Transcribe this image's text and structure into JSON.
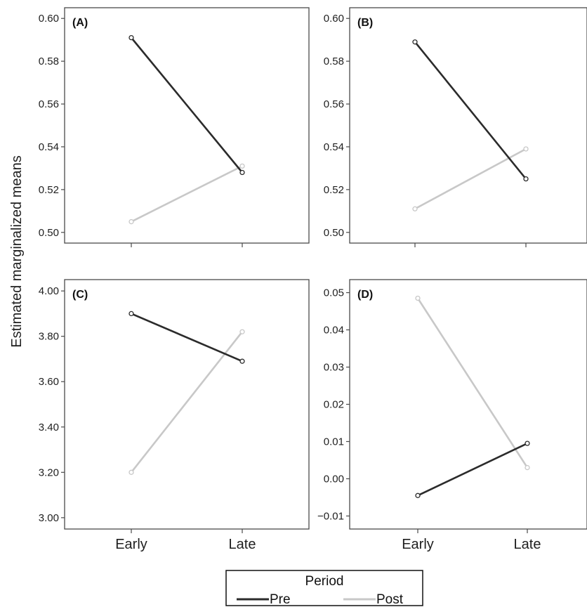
{
  "chart_data": {
    "type": "line",
    "ylabel": "Estimated marginalized means",
    "categories": [
      "Early",
      "Late"
    ],
    "legend": {
      "title": "Period",
      "placement": "bottom-center",
      "entries": [
        {
          "name": "Pre",
          "color": "#2b2b2b"
        },
        {
          "name": "Post",
          "color": "#c8c8c8"
        }
      ]
    },
    "panels": [
      {
        "label": "(A)",
        "ylim": [
          0.495,
          0.605
        ],
        "yticks": [
          0.5,
          0.52,
          0.54,
          0.56,
          0.58,
          0.6
        ],
        "ytick_labels": [
          "0.50",
          "0.52",
          "0.54",
          "0.56",
          "0.58",
          "0.60"
        ],
        "series": [
          {
            "name": "Pre",
            "values": [
              0.591,
              0.528
            ]
          },
          {
            "name": "Post",
            "values": [
              0.505,
              0.531
            ]
          }
        ]
      },
      {
        "label": "(B)",
        "ylim": [
          0.495,
          0.605
        ],
        "yticks": [
          0.5,
          0.52,
          0.54,
          0.56,
          0.58,
          0.6
        ],
        "ytick_labels": [
          "0.50",
          "0.52",
          "0.54",
          "0.56",
          "0.58",
          "0.60"
        ],
        "series": [
          {
            "name": "Pre",
            "values": [
              0.589,
              0.525
            ]
          },
          {
            "name": "Post",
            "values": [
              0.511,
              0.539
            ]
          }
        ]
      },
      {
        "label": "(C)",
        "ylim": [
          2.95,
          4.05
        ],
        "yticks": [
          3.0,
          3.2,
          3.4,
          3.6,
          3.8,
          4.0
        ],
        "ytick_labels": [
          "3.00",
          "3.20",
          "3.40",
          "3.60",
          "3.80",
          "4.00"
        ],
        "series": [
          {
            "name": "Pre",
            "values": [
              3.9,
              3.69
            ]
          },
          {
            "name": "Post",
            "values": [
              3.2,
              3.82
            ]
          }
        ]
      },
      {
        "label": "(D)",
        "ylim": [
          -0.0135,
          0.0535
        ],
        "yticks": [
          -0.01,
          0.0,
          0.01,
          0.02,
          0.03,
          0.04,
          0.05
        ],
        "ytick_labels": [
          "−0.01",
          "0.00",
          "0.01",
          "0.02",
          "0.03",
          "0.04",
          "0.05"
        ],
        "series": [
          {
            "name": "Pre",
            "values": [
              -0.0045,
              0.0095
            ]
          },
          {
            "name": "Post",
            "values": [
              0.0485,
              0.003
            ]
          }
        ]
      }
    ]
  }
}
